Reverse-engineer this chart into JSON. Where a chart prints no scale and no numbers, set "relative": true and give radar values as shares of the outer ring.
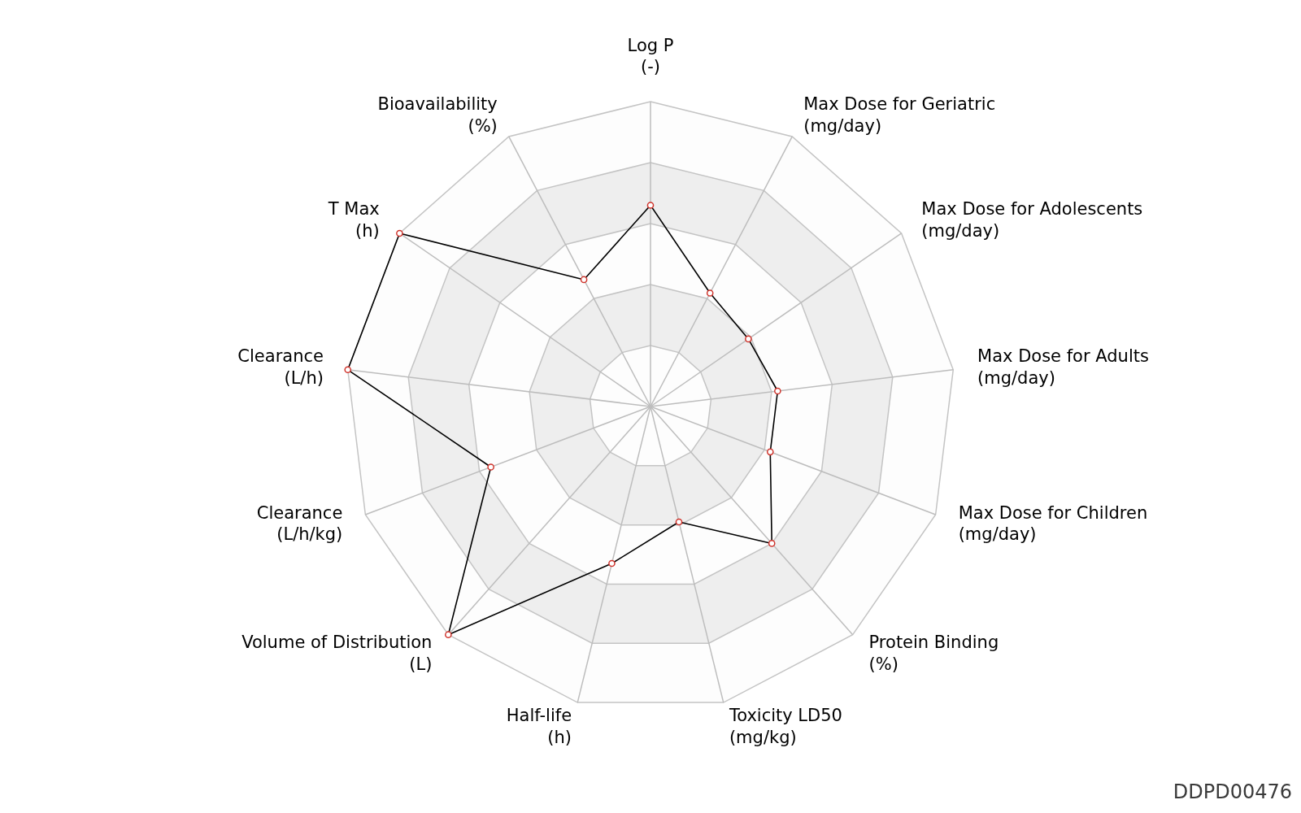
{
  "chart_data": {
    "type": "radar",
    "relative": true,
    "grid": true,
    "marker": "circle",
    "categories": [
      "Log P\n(-)",
      "Max Dose for Geriatric\n(mg/day)",
      "Max Dose for Adolescents\n(mg/day)",
      "Max Dose for Adults\n(mg/day)",
      "Max Dose for Children\n(mg/day)",
      "Protein Binding\n(%)",
      "Toxicity LD50\n(mg/kg)",
      "Half-life\n(h)",
      "Volume of Distribution\n(L)",
      "Clearance\n(L/h/kg)",
      "Clearance\n(L/h)",
      "T Max\n(h)",
      "Bioavailability\n(%)"
    ],
    "series": [
      {
        "color": "#000000",
        "values": [
          0.66,
          0.42,
          0.39,
          0.42,
          0.42,
          0.6,
          0.39,
          0.53,
          1,
          0.56,
          1,
          1,
          0.47
        ]
      }
    ],
    "annotations": [
      "DDPD00476"
    ]
  }
}
